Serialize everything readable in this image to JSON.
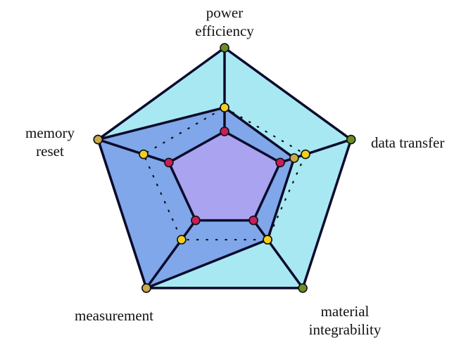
{
  "chart_data": {
    "type": "radar",
    "title": "",
    "axes": [
      {
        "key": "power",
        "label_lines": [
          "power",
          "efficiency"
        ]
      },
      {
        "key": "data",
        "label_lines": [
          "data transfer"
        ]
      },
      {
        "key": "material",
        "label_lines": [
          "material",
          "integrability"
        ]
      },
      {
        "key": "measurement",
        "label_lines": [
          "measurement"
        ]
      },
      {
        "key": "memory",
        "label_lines": [
          "memory",
          "reset"
        ]
      }
    ],
    "range": [
      0,
      1
    ],
    "grid": false,
    "series": [
      {
        "values": [
          1.0,
          1.0,
          1.0,
          1.0,
          1.0
        ],
        "style": "polygon",
        "fill": "#a8e8f2",
        "point_color": "#6b8e23"
      },
      {
        "values": [
          0.55,
          0.55,
          0.55,
          1.0,
          1.0
        ],
        "style": "polygon",
        "fill": "#7fa7ea",
        "point_color": "#c9a94b"
      },
      {
        "values": [
          0.55,
          0.64,
          0.55,
          0.55,
          0.64
        ],
        "style": "dotted",
        "fill": "none",
        "point_color": "#f2cf1e"
      },
      {
        "values": [
          0.37,
          0.44,
          0.37,
          0.37,
          0.44
        ],
        "style": "polygon",
        "fill": "#a9a3f0",
        "point_color": "#c81e5a"
      }
    ]
  }
}
